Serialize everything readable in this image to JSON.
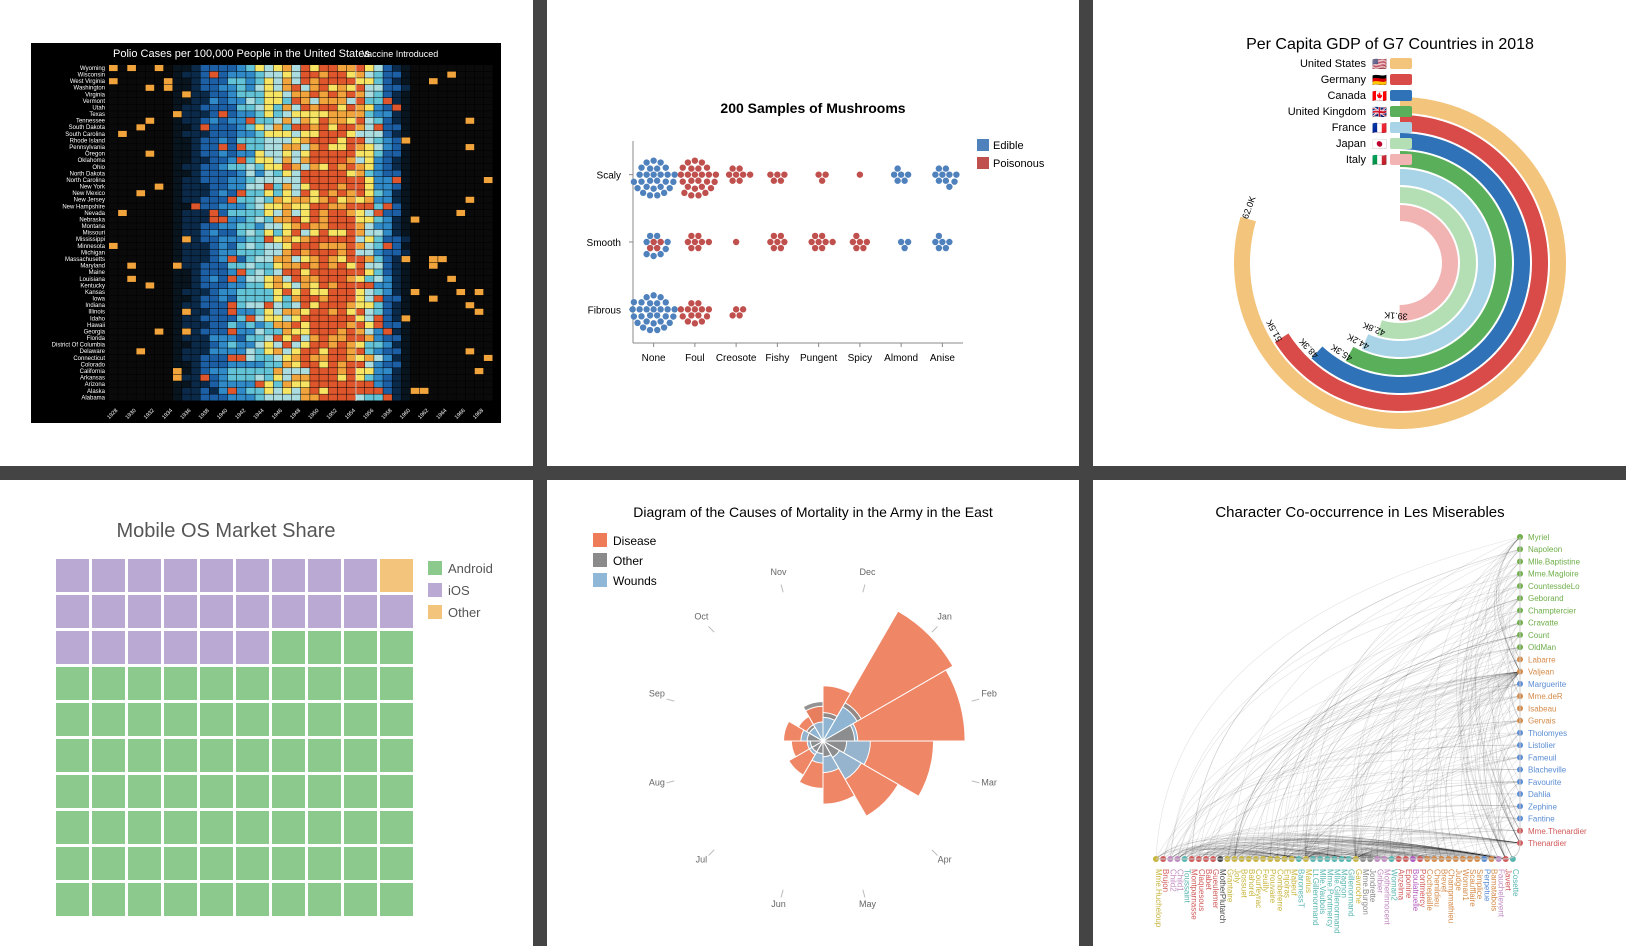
{
  "grid": {
    "gap_color": "#444444",
    "background": "#ffffff"
  },
  "polio": {
    "type": "heatmap",
    "title": "Polio Cases per 100,000 People in the United States",
    "annotation": "Vaccine Introduced",
    "background_color": "#000000",
    "text_color": "#ffffff",
    "states": [
      "Wyoming",
      "Wisconsin",
      "West Virginia",
      "Washington",
      "Virginia",
      "Vermont",
      "Utah",
      "Texas",
      "Tennessee",
      "South Dakota",
      "South Carolina",
      "Rhode Island",
      "Pennsylvania",
      "Oregon",
      "Oklahoma",
      "Ohio",
      "North Dakota",
      "North Carolina",
      "New York",
      "New Mexico",
      "New Jersey",
      "New Hampshire",
      "Nevada",
      "Nebraska",
      "Montana",
      "Missouri",
      "Mississippi",
      "Minnesota",
      "Michigan",
      "Massachusetts",
      "Maryland",
      "Maine",
      "Louisiana",
      "Kentucky",
      "Kansas",
      "Iowa",
      "Indiana",
      "Illinois",
      "Idaho",
      "Hawaii",
      "Georgia",
      "Florida",
      "District Of Columbia",
      "Delaware",
      "Connecticut",
      "Colorado",
      "California",
      "Arkansas",
      "Arizona",
      "Alaska",
      "Alabama"
    ],
    "year_start": 1928,
    "year_end": 1969,
    "vaccine_year": 1955,
    "color_scale": [
      "#08141e",
      "#0b2a4a",
      "#1d5fa4",
      "#2f8ac7",
      "#63c3d6",
      "#aadce0",
      "#f7e463",
      "#f1a33c",
      "#e0562c"
    ],
    "title_fontsize": 11,
    "label_fontsize": 6
  },
  "mushrooms": {
    "type": "dotplot-matrix",
    "title": "200 Samples of Mushrooms",
    "title_fontsize": 14,
    "rows": [
      "Scaly",
      "Smooth",
      "Fibrous"
    ],
    "cols": [
      "None",
      "Foul",
      "Creosote",
      "Fishy",
      "Pungent",
      "Spicy",
      "Almond",
      "Anise"
    ],
    "legend": [
      {
        "label": "Edible",
        "color": "#4f81bd"
      },
      {
        "label": "Poisonous",
        "color": "#c0504d"
      }
    ],
    "dot_radius": 3.2,
    "axis_color": "#888888",
    "label_fontsize": 10,
    "cells": [
      [
        {
          "e": 28,
          "p": 0
        },
        {
          "e": 0,
          "p": 26
        },
        {
          "e": 0,
          "p": 8
        },
        {
          "e": 0,
          "p": 5
        },
        {
          "e": 0,
          "p": 3
        },
        {
          "e": 0,
          "p": 1
        },
        {
          "e": 6,
          "p": 0
        },
        {
          "e": 10,
          "p": 0
        }
      ],
      [
        {
          "e": 12,
          "p": 4
        },
        {
          "e": 0,
          "p": 8
        },
        {
          "e": 0,
          "p": 1
        },
        {
          "e": 0,
          "p": 7
        },
        {
          "e": 0,
          "p": 8
        },
        {
          "e": 0,
          "p": 6
        },
        {
          "e": 3,
          "p": 0
        },
        {
          "e": 6,
          "p": 0
        }
      ],
      [
        {
          "e": 30,
          "p": 0
        },
        {
          "e": 0,
          "p": 14
        },
        {
          "e": 0,
          "p": 4
        },
        {
          "e": 0,
          "p": 0
        },
        {
          "e": 0,
          "p": 0
        },
        {
          "e": 0,
          "p": 0
        },
        {
          "e": 0,
          "p": 0
        },
        {
          "e": 0,
          "p": 0
        }
      ]
    ]
  },
  "gdp": {
    "type": "radial-bar",
    "title": "Per Capita GDP of G7 Countries in 2018",
    "title_fontsize": 16,
    "label_fontsize": 11,
    "value_fontsize": 9,
    "background": "#ffffff",
    "items": [
      {
        "country": "United States",
        "value": 62.0,
        "label": "62.0K",
        "color": "#f3c47b",
        "flag": "🇺🇸"
      },
      {
        "country": "Germany",
        "value": 51.5,
        "label": "51.5K",
        "color": "#d94b48",
        "flag": "🇩🇪"
      },
      {
        "country": "Canada",
        "value": 48.3,
        "label": "48.3K",
        "color": "#2f72b7",
        "flag": "🇨🇦"
      },
      {
        "country": "United Kingdom",
        "value": 45.3,
        "label": "45.3K",
        "color": "#5aaf5a",
        "flag": "🇬🇧"
      },
      {
        "country": "France",
        "value": 44.2,
        "label": "44.2K",
        "color": "#a9d3e6",
        "flag": "🇫🇷"
      },
      {
        "country": "Japan",
        "value": 42.8,
        "label": "42.8K",
        "color": "#b4dfb4",
        "flag": "🇯🇵"
      },
      {
        "country": "Italy",
        "value": 39.1,
        "label": "39.1K",
        "color": "#f2b3b3",
        "flag": "🇮🇹"
      }
    ],
    "max_value": 65,
    "ring_width": 18,
    "inner_radius": 42
  },
  "mobile": {
    "type": "waffle",
    "title": "Mobile OS Market Share",
    "title_fontsize": 20,
    "grid_cols": 10,
    "grid_rows": 10,
    "cell_gap": 3,
    "cell_size": 33,
    "legend": [
      {
        "label": "Android",
        "color": "#8cc98c",
        "count": 74
      },
      {
        "label": "iOS",
        "color": "#b9a9d3",
        "count": 25
      },
      {
        "label": "Other",
        "color": "#f3c47b",
        "count": 1
      }
    ],
    "fill_order": [
      "Other",
      "iOS",
      "Android"
    ],
    "background": "#ffffff"
  },
  "nightingale": {
    "type": "polar-area",
    "title": "Diagram of the Causes of Mortality in the Army in the East",
    "title_fontsize": 14,
    "legend": [
      {
        "label": "Disease",
        "color": "#ee7c59"
      },
      {
        "label": "Other",
        "color": "#8a8a8a"
      },
      {
        "label": "Wounds",
        "color": "#8fb8d8"
      }
    ],
    "months": [
      "Dec",
      "Jan",
      "Feb",
      "Mar",
      "Apr",
      "May",
      "Jun",
      "Jul",
      "Aug",
      "Sep",
      "Oct",
      "Nov"
    ],
    "month_fontsize": 9,
    "values": {
      "Disease": [
        35,
        95,
        90,
        70,
        55,
        40,
        30,
        25,
        20,
        25,
        18,
        22
      ],
      "Wounds": [
        15,
        25,
        22,
        30,
        28,
        20,
        14,
        10,
        10,
        14,
        10,
        12
      ],
      "Other": [
        18,
        28,
        20,
        15,
        12,
        10,
        8,
        8,
        8,
        10,
        12,
        25
      ]
    },
    "max_radius": 150
  },
  "lesmis": {
    "type": "arc-diagram",
    "title": "Character Co-occurrence in Les Miserables",
    "title_fontsize": 15,
    "label_fontsize": 8,
    "edge_color": "#000000",
    "edge_opacity": 0.12,
    "node_radius": 3,
    "groups_palette": [
      "#c08bc0",
      "#6fae4a",
      "#d58b4a",
      "#5a8dd3",
      "#d15a5a",
      "#58b6b0",
      "#b15abf",
      "#8a8a8a",
      "#c7b53e",
      "#4a4a4a"
    ],
    "nodes": [
      {
        "name": "Myriel",
        "group": 1
      },
      {
        "name": "Napoleon",
        "group": 1
      },
      {
        "name": "Mlle.Baptistine",
        "group": 1
      },
      {
        "name": "Mme.Magloire",
        "group": 1
      },
      {
        "name": "CountessdeLo",
        "group": 1
      },
      {
        "name": "Geborand",
        "group": 1
      },
      {
        "name": "Champtercier",
        "group": 1
      },
      {
        "name": "Cravatte",
        "group": 1
      },
      {
        "name": "Count",
        "group": 1
      },
      {
        "name": "OldMan",
        "group": 1
      },
      {
        "name": "Labarre",
        "group": 2
      },
      {
        "name": "Valjean",
        "group": 2
      },
      {
        "name": "Marguerite",
        "group": 3
      },
      {
        "name": "Mme.deR",
        "group": 2
      },
      {
        "name": "Isabeau",
        "group": 2
      },
      {
        "name": "Gervais",
        "group": 2
      },
      {
        "name": "Tholomyes",
        "group": 3
      },
      {
        "name": "Listolier",
        "group": 3
      },
      {
        "name": "Fameuil",
        "group": 3
      },
      {
        "name": "Blacheville",
        "group": 3
      },
      {
        "name": "Favourite",
        "group": 3
      },
      {
        "name": "Dahlia",
        "group": 3
      },
      {
        "name": "Zephine",
        "group": 3
      },
      {
        "name": "Fantine",
        "group": 3
      },
      {
        "name": "Mme.Thenardier",
        "group": 4
      },
      {
        "name": "Thenardier",
        "group": 4
      },
      {
        "name": "Cosette",
        "group": 5
      },
      {
        "name": "Javert",
        "group": 4
      },
      {
        "name": "Fauchelevent",
        "group": 0
      },
      {
        "name": "Bamatabois",
        "group": 2
      },
      {
        "name": "Perpetue",
        "group": 3
      },
      {
        "name": "Simplice",
        "group": 2
      },
      {
        "name": "Scaufflaire",
        "group": 2
      },
      {
        "name": "Woman1",
        "group": 2
      },
      {
        "name": "Judge",
        "group": 2
      },
      {
        "name": "Champmathieu",
        "group": 2
      },
      {
        "name": "Brevet",
        "group": 2
      },
      {
        "name": "Chenildieu",
        "group": 2
      },
      {
        "name": "Cochepaille",
        "group": 2
      },
      {
        "name": "Pontmercy",
        "group": 4
      },
      {
        "name": "Boulatruelle",
        "group": 6
      },
      {
        "name": "Eponine",
        "group": 4
      },
      {
        "name": "Anzelma",
        "group": 4
      },
      {
        "name": "Woman2",
        "group": 5
      },
      {
        "name": "MotherInnocent",
        "group": 0
      },
      {
        "name": "Gribier",
        "group": 0
      },
      {
        "name": "Jondrette",
        "group": 7
      },
      {
        "name": "Mme.Burgon",
        "group": 7
      },
      {
        "name": "Gavroche",
        "group": 8
      },
      {
        "name": "Gillenormand",
        "group": 5
      },
      {
        "name": "Magnon",
        "group": 5
      },
      {
        "name": "Mlle.Gillenormand",
        "group": 5
      },
      {
        "name": "Mme.Pontmercy",
        "group": 5
      },
      {
        "name": "Mlle.Vaubois",
        "group": 5
      },
      {
        "name": "Lt.Gillenormand",
        "group": 5
      },
      {
        "name": "Marius",
        "group": 8
      },
      {
        "name": "BaronessT",
        "group": 5
      },
      {
        "name": "Mabeuf",
        "group": 8
      },
      {
        "name": "Enjolras",
        "group": 8
      },
      {
        "name": "Combeferre",
        "group": 8
      },
      {
        "name": "Prouvaire",
        "group": 8
      },
      {
        "name": "Feuilly",
        "group": 8
      },
      {
        "name": "Courfeyrac",
        "group": 8
      },
      {
        "name": "Bahorel",
        "group": 8
      },
      {
        "name": "Bossuet",
        "group": 8
      },
      {
        "name": "Joly",
        "group": 8
      },
      {
        "name": "Grantaire",
        "group": 8
      },
      {
        "name": "MotherPlutarch",
        "group": 9
      },
      {
        "name": "Gueulemer",
        "group": 4
      },
      {
        "name": "Babet",
        "group": 4
      },
      {
        "name": "Claquesous",
        "group": 4
      },
      {
        "name": "Montparnasse",
        "group": 4
      },
      {
        "name": "Toussaint",
        "group": 5
      },
      {
        "name": "Child1",
        "group": 10
      },
      {
        "name": "Child2",
        "group": 10
      },
      {
        "name": "Brujon",
        "group": 4
      },
      {
        "name": "Mme.Hucheloup",
        "group": 8
      }
    ],
    "hub_indices": [
      11,
      25,
      27,
      55,
      58,
      48
    ],
    "random_edges": 220
  }
}
